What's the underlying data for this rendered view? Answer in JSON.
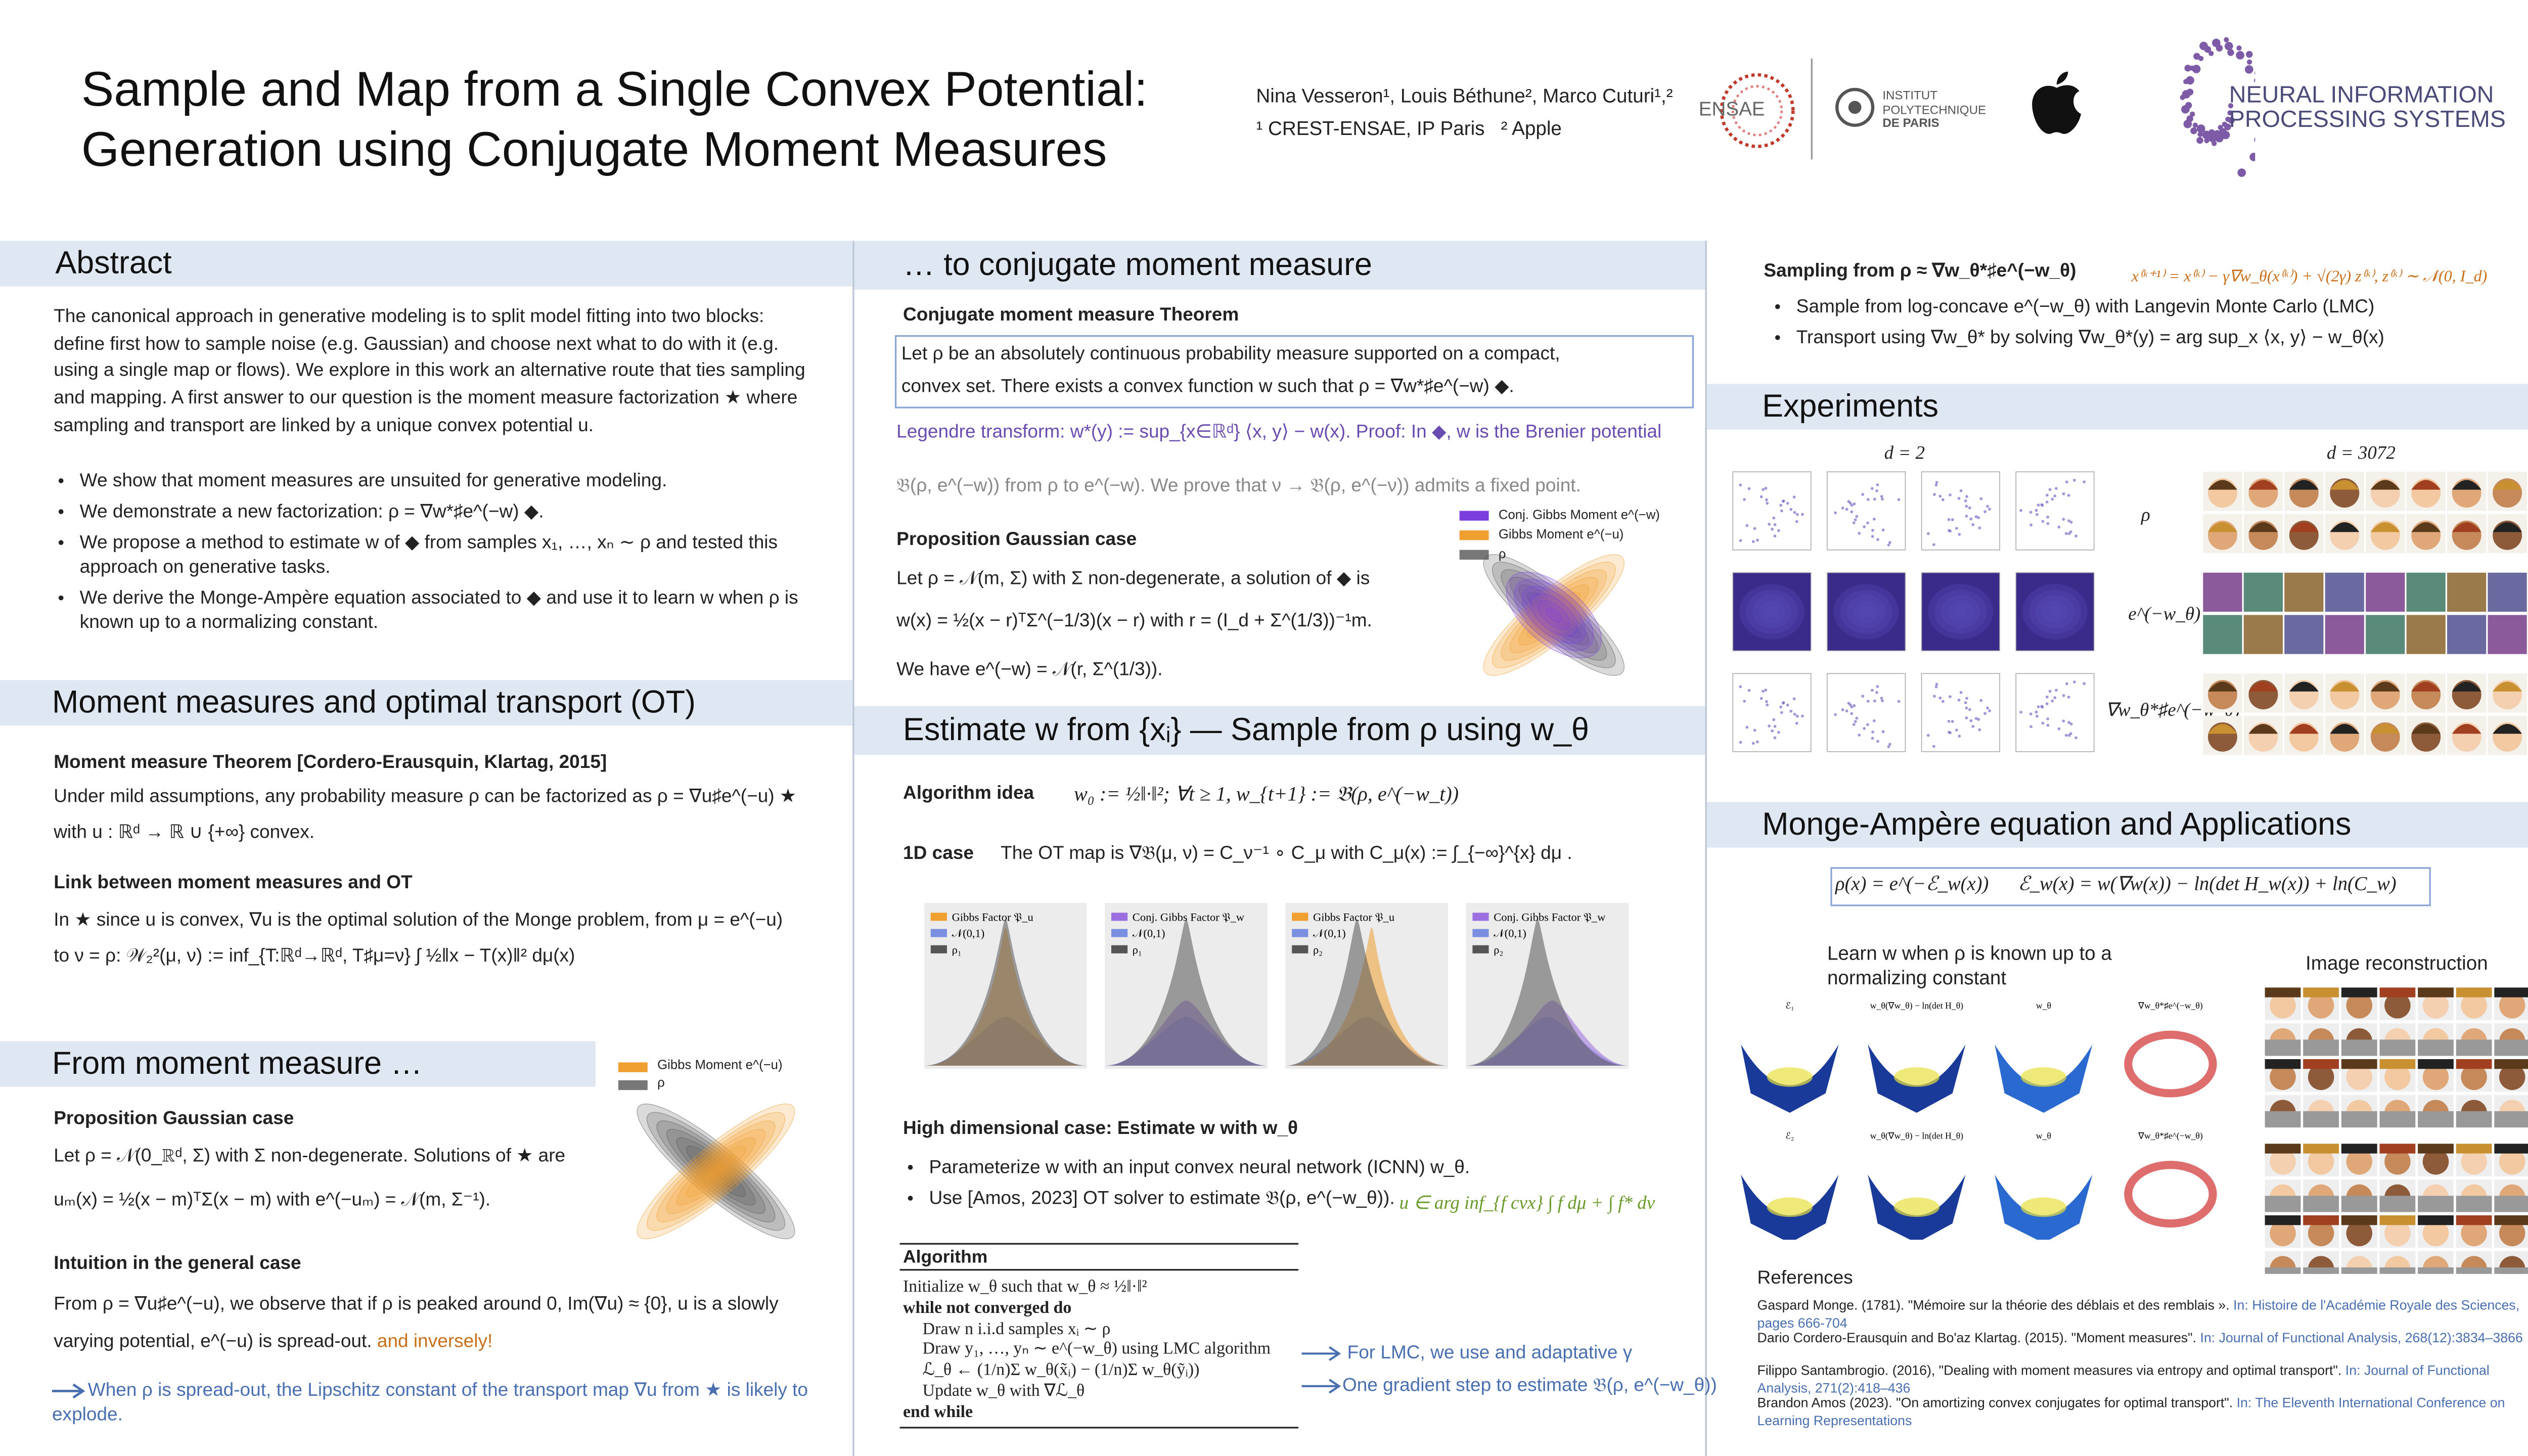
{
  "header": {
    "title_lines": [
      "Sample and Map from a Single Convex Potential:",
      "Generation using Conjugate Moment Measures"
    ],
    "authors": "Nina Vesseron¹, Louis Béthune², Marco Cuturi¹,²",
    "affiliations": "¹ CREST-ENSAE, IP Paris   ² Apple",
    "logos": {
      "ensae": "ENSAE",
      "ipp": [
        "INSTITUT",
        "POLYTECHNIQUE",
        "DE PARIS"
      ],
      "neurips": [
        "NEURAL INFORMATION",
        "PROCESSING SYSTEMS"
      ]
    }
  },
  "abstract": {
    "heading": "Abstract",
    "paragraph": "The canonical approach in generative modeling is to split model fitting into two blocks: define first how to sample noise (e.g. Gaussian) and choose next what to do with it (e.g. using a single map or flows). We explore in this work an alternative route that ties sampling and mapping. A first answer to our question is the moment measure factorization ★ where sampling and transport are linked by a unique convex potential u.",
    "bullets": [
      "We show that moment measures are unsuited for generative modeling.",
      "We demonstrate a new factorization:   ρ = ∇w*♯e^(−w)  ◆.",
      "We propose a method to estimate w of ◆ from samples x₁, …, xₙ ∼ ρ and tested this approach on generative tasks.",
      "We derive the Monge-Ampère equation associated to ◆ and use it to learn w when ρ is known up to a normalizing constant."
    ]
  },
  "moment_ot": {
    "heading": "Moment measures and optimal transport (OT)",
    "theorem_title": "Moment measure Theorem [Cordero-Erausquin, Klartag, 2015]",
    "theorem_lines": [
      "Under mild assumptions, any probability measure ρ can be factorized as  ρ = ∇u♯e^(−u)  ★",
      "with u : ℝᵈ → ℝ ∪ {+∞} convex."
    ],
    "link_title": "Link between moment measures and OT",
    "link_lines": [
      "In ★ since u is convex, ∇u is the optimal solution of the Monge problem, from μ = e^(−u)",
      "to ν = ρ:     𝒲₂²(μ, ν) := inf_{T:ℝᵈ→ℝᵈ, T♯μ=ν} ∫ ½‖x − T(x)‖² dμ(x)"
    ]
  },
  "from_moment": {
    "heading": "From moment measure …",
    "legend": [
      "Gibbs Moment e^(−u)",
      "ρ"
    ],
    "prop_title": "Proposition Gaussian case",
    "prop_lines": [
      "Let ρ = 𝒩(0_ℝᵈ, Σ) with Σ non-degenerate. Solutions of ★ are",
      "uₘ(x) = ½(x − m)ᵀΣ(x − m) with e^(−uₘ) = 𝒩(m, Σ⁻¹)."
    ],
    "intuition_title": "Intuition in the general case",
    "intuition_lines": [
      "From ρ = ∇u♯e^(−u), we observe that if ρ is peaked around 0, Im(∇u) ≈ {0}, u is a slowly",
      "varying potential, e^(−u) is spread-out."
    ],
    "inversely": "and inversely!",
    "note": "When ρ is spread-out, the Lipschitz constant of the transport map ∇u from ★ is likely to explode."
  },
  "conjugate": {
    "heading": "… to conjugate moment measure",
    "theorem_title": "Conjugate moment measure Theorem",
    "theorem_lines": [
      "Let ρ be an absolutely continuous probability measure supported on a compact,",
      "convex set. There exists a convex function w such that  ρ = ∇w*♯e^(−w)  ◆."
    ],
    "legendre_lines": [
      "Legendre transform: w*(y) := sup_{x∈ℝᵈ} ⟨x, y⟩ − w(x). Proof: In ◆, w is the Brenier potential",
      "𝔅(ρ, e^(−w)) from ρ to e^(−w). We prove that ν → 𝔅(ρ, e^(−ν)) admits a fixed point."
    ],
    "prop_title": "Proposition Gaussian case",
    "prop_lines": [
      "Let ρ = 𝒩(m, Σ) with Σ non-degenerate, a solution of ◆ is",
      "w(x) = ½(x − r)ᵀΣ^(−1/3)(x − r) with r = (I_d + Σ^(1/3))⁻¹m.",
      "We have  e^(−w) = 𝒩(r, Σ^(1/3))."
    ],
    "legend": [
      "Conj. Gibbs Moment e^(−w)",
      "Gibbs Moment e^(−u)",
      "ρ"
    ]
  },
  "estimate": {
    "heading": "Estimate w from {xᵢ} — Sample from ρ using w_θ",
    "idea_label": "Algorithm idea",
    "idea_formula": "w₀ := ½‖·‖²;    ∀t ≥ 1,    w_{t+1} := 𝔅(ρ, e^(−w_t))",
    "case1d_label": "1D case",
    "case1d_text": "The OT map is  ∇𝔅(μ, ν) = C_ν⁻¹ ∘ C_μ  with C_μ(x) := ∫_{−∞}^{x} dμ .",
    "panels": [
      {
        "legend": [
          "Gibbs Factor 𝔓_u",
          "𝒩(0,1)",
          "ρ₁"
        ]
      },
      {
        "legend": [
          "Conj. Gibbs Factor 𝔓_w",
          "𝒩(0,1)",
          "ρ₁"
        ]
      },
      {
        "legend": [
          "Gibbs Factor 𝔓_u",
          "𝒩(0,1)",
          "ρ₂"
        ]
      },
      {
        "legend": [
          "Conj. Gibbs Factor 𝔓_w",
          "𝒩(0,1)",
          "ρ₂"
        ]
      }
    ],
    "highdim_title": "High dimensional case: Estimate w with w_θ",
    "bullets": [
      "Parameterize w with an input convex neural network (ICNN)  w_θ.",
      "Use [Amos, 2023] OT solver to estimate 𝔅(ρ, e^(−w_θ))."
    ],
    "solver_formula": "u ∈ arg inf_{f cvx} ∫ f dμ + ∫ f* dν",
    "algorithm_title": "Algorithm",
    "algorithm_lines": [
      "Initialize w_θ such that w_θ ≈ ½‖·‖²",
      "while not converged do",
      "Draw n i.i.d samples xᵢ ∼ ρ",
      "Draw y₁, …, yₙ ∼ e^(−w_θ) using LMC algorithm",
      "ℒ_θ ← (1/n)Σ w_θ(x̃ᵢ) − (1/n)Σ w_θ(ỹᵢ))",
      "Update w_θ with ∇ℒ_θ",
      "end while"
    ],
    "annotations": [
      "For LMC, we use and adaptative γ",
      "One gradient step to estimate 𝔅(ρ, e^(−w_θ))"
    ]
  },
  "sampling": {
    "title": "Sampling from ρ ≈ ∇w_θ*♯e^(−w_θ)",
    "formula": "x⁽ᵏ⁺¹⁾ = x⁽ᵏ⁾ − γ∇w_θ(x⁽ᵏ⁾) + √(2γ) z⁽ᵏ⁾,  z⁽ᵏ⁾ ∼ 𝒩(0, I_d)",
    "bullets": [
      "Sample from log-concave e^(−w_θ) with Langevin Monte Carlo (LMC)",
      "Transport using ∇w_θ* by solving  ∇w_θ*(y) = arg sup_x ⟨x, y⟩ − w_θ(x)"
    ]
  },
  "experiments": {
    "heading": "Experiments",
    "columns": [
      "d = 2",
      "d = 3072"
    ],
    "rows": [
      "ρ",
      "e^(−w_θ)",
      "∇w_θ*♯e^(−w_θ)"
    ]
  },
  "monge": {
    "heading": "Monge-Ampère equation and Applications",
    "formula": "ρ(x) = e^(−ℰ_w(x))      ℰ_w(x) = w(∇w(x)) − ln(det H_w(x)) + ln(C_w)",
    "learn_caption": [
      "Learn w when ρ is known up to a",
      "normalizing constant"
    ],
    "image_caption": "Image reconstruction",
    "plot_titles": [
      "ℰ₁",
      "w_θ(∇w_θ) − ln(det H_θ)",
      "w_θ",
      "∇w_θ*♯e^(−w_θ)",
      "ℰ₂",
      "w_θ(∇w_θ) − ln(det H_θ)",
      "w_θ",
      "∇w_θ*♯e^(−w_θ)"
    ]
  },
  "references": {
    "heading": "References",
    "items": [
      {
        "text": "Gaspard Monge. (1781). \"Mémoire sur la théorie des déblais et des remblais ».",
        "venue": "In: Histoire de l'Académie Royale des Sciences, pages 666-704"
      },
      {
        "text": "Dario Cordero-Erausquin and Bo'az Klartag. (2015). \"Moment measures\".",
        "venue": "In: Journal of Functional Analysis, 268(12):3834–3866"
      },
      {
        "text": "Filippo Santambrogio. (2016), \"Dealing with moment measures via entropy and optimal transport\".",
        "venue": "In: Journal of Functional Analysis, 271(2):418–436"
      },
      {
        "text": "Brandon Amos (2023). \"On amortizing convex conjugates for optimal transport\".",
        "venue": "In: The Eleventh International Conference on Learning Representations"
      }
    ]
  }
}
